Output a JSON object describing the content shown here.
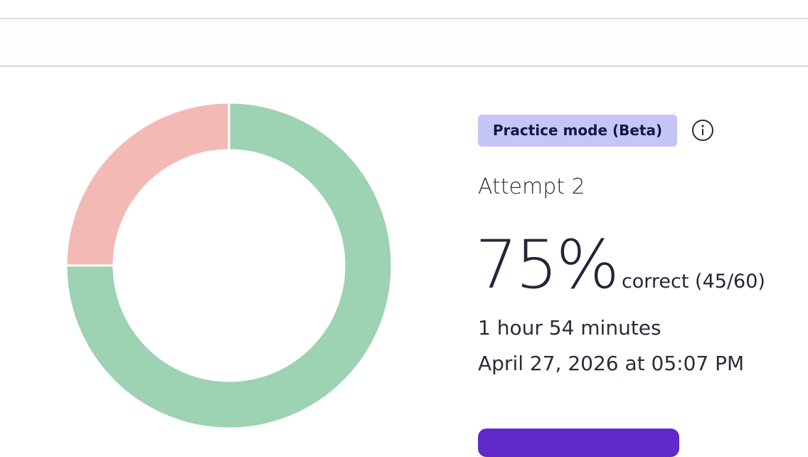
{
  "badge": "Practice mode (Beta)",
  "attempt": "Attempt 2",
  "score": "75%",
  "score_detail": "correct (45/60)",
  "duration": "1 hour 54 minutes",
  "date": "April 27, 2026 at 05:07 PM",
  "donut": {
    "type": "pie",
    "values": [
      45,
      15
    ],
    "colors": [
      "#9dd2b3",
      "#f3bab5"
    ]
  }
}
